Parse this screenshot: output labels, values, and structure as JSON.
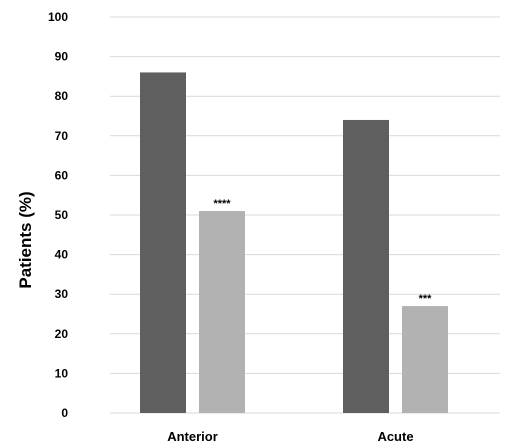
{
  "chart_data": {
    "type": "bar",
    "title": "",
    "xlabel": "",
    "ylabel": "Patients (%)",
    "ylim": [
      0,
      100
    ],
    "yticks": [
      0,
      10,
      20,
      30,
      40,
      50,
      60,
      70,
      80,
      90,
      100
    ],
    "grid": true,
    "legend": "none",
    "categories": [
      "Anterior",
      "Acute"
    ],
    "series": [
      {
        "values": [
          86,
          74
        ],
        "color": "#5f5f5f"
      },
      {
        "values": [
          51,
          27
        ],
        "color": "#b2b2b2",
        "annotations": [
          "****",
          "***"
        ]
      }
    ]
  }
}
